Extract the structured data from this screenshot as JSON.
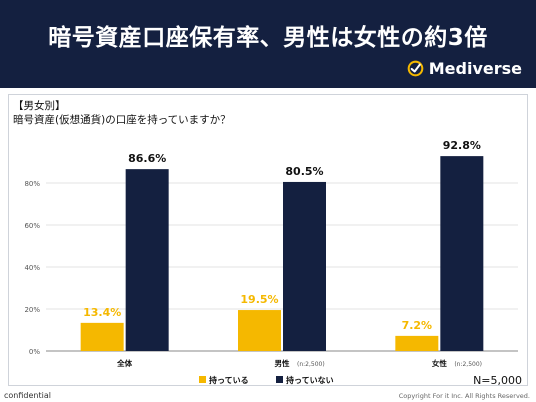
{
  "header": {
    "title": "暗号資産口座保有率、男性は女性の約3倍",
    "brand": "Mediverse"
  },
  "question": {
    "tag": "【男女別】",
    "text": "暗号資産(仮想通貨)の口座を持っていますか？"
  },
  "chart_data": {
    "type": "bar",
    "categories": [
      "全体",
      "男性",
      "女性"
    ],
    "category_notes": [
      "",
      "(n:2,500)",
      "(n:2,500)"
    ],
    "series": [
      {
        "name": "持っている",
        "color": "#F5B800",
        "values": [
          13.4,
          19.5,
          7.2
        ]
      },
      {
        "name": "持っていない",
        "color": "#142040",
        "values": [
          86.6,
          80.5,
          92.8
        ]
      }
    ],
    "value_labels": [
      [
        "13.4%",
        "19.5%",
        "7.2%"
      ],
      [
        "86.6%",
        "80.5%",
        "92.8%"
      ]
    ],
    "y_ticks": [
      "0%",
      "20%",
      "40%",
      "60%",
      "80%"
    ],
    "ylim": [
      0,
      100
    ],
    "grid": true,
    "legend_position": "bottom-center",
    "sample_size": "N=5,000"
  },
  "footer": {
    "left": "confidential",
    "right": "Copyright For it Inc. All Rights Reserved."
  },
  "colors": {
    "header_bg": "#142040",
    "accent": "#F5B800"
  }
}
